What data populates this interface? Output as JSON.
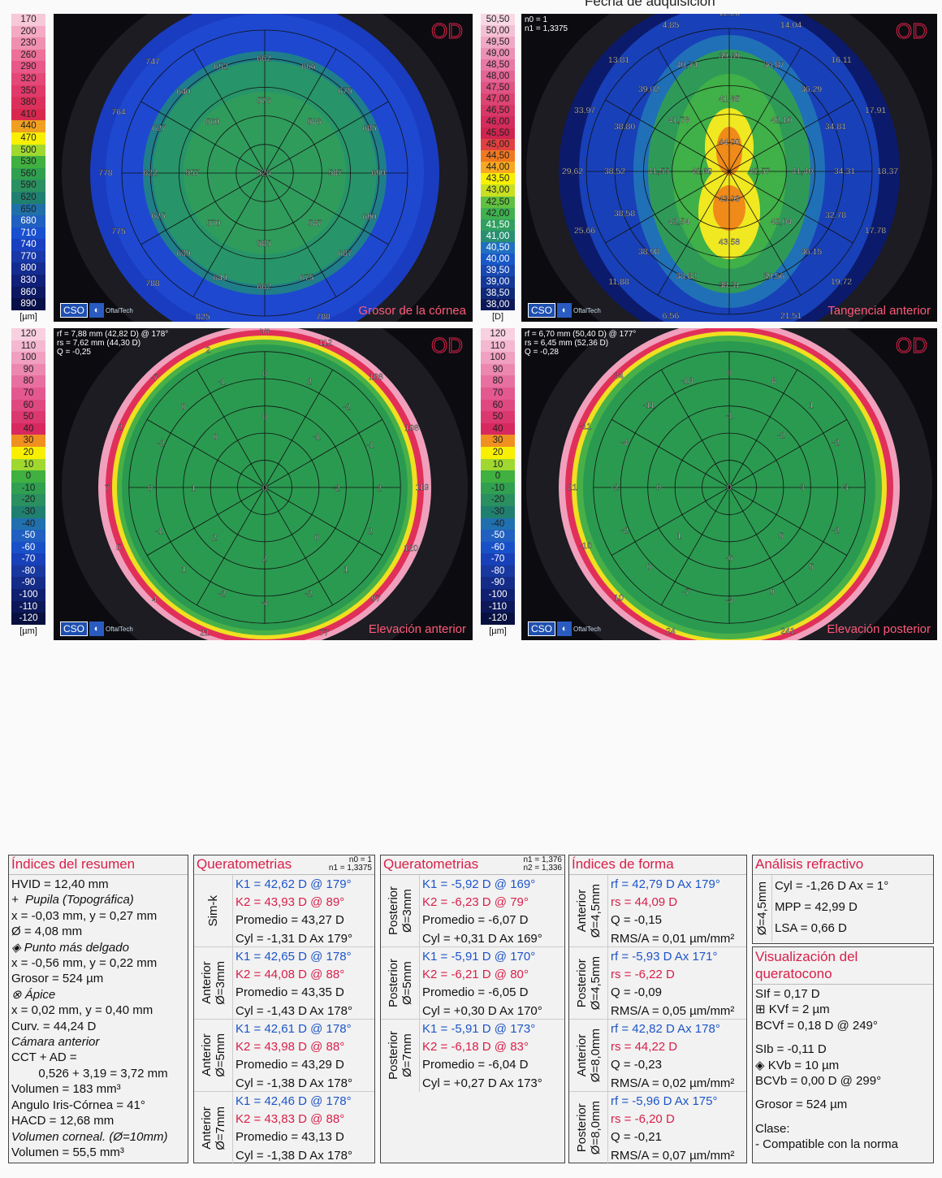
{
  "header": {
    "text": "Fecha de adquisición"
  },
  "maps": [
    {
      "id": "thickness",
      "od": "OD",
      "title": "Grosor de la córnea",
      "unit": "[µm]",
      "info": "",
      "scale": {
        "values": [
          "170",
          "200",
          "230",
          "260",
          "290",
          "320",
          "350",
          "380",
          "410",
          "440",
          "470",
          "500",
          "530",
          "560",
          "590",
          "620",
          "650",
          "680",
          "710",
          "740",
          "770",
          "800",
          "830",
          "860",
          "890"
        ],
        "colors": [
          "#f7c8d8",
          "#f4aac4",
          "#f090b0",
          "#ec7098",
          "#e85888",
          "#e44878",
          "#e03a6a",
          "#dc305c",
          "#d8284e",
          "#f0a020",
          "#f8f000",
          "#a0d830",
          "#40b040",
          "#30a050",
          "#2a9060",
          "#208070",
          "#2070a8",
          "#2060c0",
          "#1850d0",
          "#1840c0",
          "#1838a8",
          "#142c90",
          "#102078",
          "#0c1860",
          "#081048"
        ]
      },
      "labels": [
        "747",
        "652",
        "662",
        "666",
        "640",
        "675",
        "576",
        "764",
        "627",
        "560",
        "586",
        "685",
        "778",
        "622",
        "557",
        "526",
        "587",
        "690",
        "625",
        "570",
        "587",
        "690",
        "775",
        "585",
        "639",
        "687",
        "649",
        "662",
        "675",
        "788",
        "825",
        "788"
      ]
    },
    {
      "id": "tangential",
      "od": "OD",
      "title": "Tangencial anterior",
      "unit": "[D]",
      "info": "n0 = 1\nn1 = 1,3375",
      "scale": {
        "values": [
          "50,50",
          "50,00",
          "49,50",
          "49,00",
          "48,50",
          "48,00",
          "47,50",
          "47,00",
          "46,50",
          "46,00",
          "45,50",
          "45,00",
          "44,50",
          "44,00",
          "43,50",
          "43,00",
          "42,50",
          "42,00",
          "41,50",
          "41,00",
          "40,50",
          "40,00",
          "39,50",
          "39,00",
          "38,50",
          "38,00"
        ],
        "colors": [
          "#f8d8e4",
          "#f4c0d4",
          "#f0a8c4",
          "#ec90b4",
          "#e878a4",
          "#e46494",
          "#e05484",
          "#dc4474",
          "#d83868",
          "#d42c5c",
          "#d02450",
          "#e04040",
          "#f07820",
          "#f8a820",
          "#f8f000",
          "#c8e020",
          "#60c040",
          "#40b050",
          "#30a060",
          "#289070",
          "#2070c0",
          "#1858c8",
          "#1848b0",
          "#143898",
          "#102878",
          "#0c1858"
        ]
      },
      "labels": [
        "12,28",
        "4,85",
        "14,04",
        "13,81",
        "40,74",
        "39,89",
        "36,87",
        "16,11",
        "39,02",
        "41,85",
        "36,29",
        "33,97",
        "38,80",
        "41,78",
        "42,10",
        "34,81",
        "17,91",
        "44,00",
        "29,62",
        "38,52",
        "41,55",
        "42,60",
        "42,57",
        "41,40",
        "34,31",
        "18,37",
        "43,93",
        "38,58",
        "42,54",
        "42,04",
        "32,78",
        "25,66",
        "17,78",
        "43,58",
        "38,98",
        "36,15",
        "11,88",
        "38,82",
        "38,31",
        "39,56",
        "19,72",
        "6,56",
        "21,51"
      ]
    },
    {
      "id": "elev-ant",
      "od": "OD",
      "title": "Elevación anterior",
      "unit": "[µm]",
      "info": "rf = 7,88 mm (42,82 D) @ 178°\nrs = 7,62 mm (44,30 D)\nQ = -0,25",
      "scale": {
        "values": [
          "120",
          "110",
          "100",
          "90",
          "80",
          "70",
          "60",
          "50",
          "40",
          "30",
          "20",
          "10",
          "0",
          "-10",
          "-20",
          "-30",
          "-40",
          "-50",
          "-60",
          "-70",
          "-80",
          "-90",
          "-100",
          "-110",
          "-120"
        ],
        "colors": [
          "#f8d0e0",
          "#f4b8d0",
          "#f0a0c0",
          "#ec88b0",
          "#e870a0",
          "#e45890",
          "#e04880",
          "#dc3870",
          "#d82860",
          "#f09020",
          "#f8f000",
          "#a0d830",
          "#40b040",
          "#30a050",
          "#2a9060",
          "#208070",
          "#2070b0",
          "#2060c0",
          "#1850c8",
          "#1840b8",
          "#1838a0",
          "#142c88",
          "#102070",
          "#0c1858",
          "#081040"
        ]
      },
      "labels": [
        "58",
        "2",
        "112",
        "-7",
        "-1",
        "0",
        "2",
        "108",
        "0",
        "-2",
        "0",
        "2",
        "-2",
        "0",
        "-1",
        "108",
        "-1",
        "7",
        "0",
        "1",
        "0",
        "-2",
        "2",
        "119",
        "-1",
        "2",
        "0",
        "2",
        "5",
        "120",
        "2",
        "1",
        "1",
        "-2",
        "-4",
        "-2",
        "97",
        "4",
        "21",
        "77",
        "63"
      ]
    },
    {
      "id": "elev-post",
      "od": "OD",
      "title": "Elevación posterior",
      "unit": "[µm]",
      "info": "rf = 6,70 mm (50,40 D) @ 177°\nrs = 6,45 mm (52,36 D)\nQ = -0,28",
      "scale": {
        "values": [
          "120",
          "110",
          "100",
          "90",
          "80",
          "70",
          "60",
          "50",
          "40",
          "30",
          "20",
          "10",
          "0",
          "-10",
          "-20",
          "-30",
          "-40",
          "-50",
          "-60",
          "-70",
          "-80",
          "-90",
          "-100",
          "-110",
          "-120"
        ],
        "colors": [
          "#f8d0e0",
          "#f4b8d0",
          "#f0a0c0",
          "#ec88b0",
          "#e870a0",
          "#e45890",
          "#e04880",
          "#dc3870",
          "#d82860",
          "#f09020",
          "#f8f000",
          "#a0d830",
          "#40b040",
          "#30a050",
          "#2a9060",
          "#208070",
          "#2070b0",
          "#2060c0",
          "#1850c8",
          "#1840b8",
          "#1838a0",
          "#142c88",
          "#102070",
          "#0c1858",
          "#081040"
        ]
      },
      "labels": [
        "34",
        "-18",
        "0",
        "8",
        "-11",
        "1",
        "-11",
        "-4",
        "-1",
        "-2",
        "-2",
        "21",
        "-2",
        "0",
        "0",
        "3",
        "-3",
        "-2",
        "1",
        "-2",
        "5",
        "-10",
        "0",
        "-6",
        "5",
        "-7",
        "9",
        "10",
        "-3",
        "24",
        "241"
      ]
    }
  ],
  "logo": {
    "cso": "CSO",
    "sub": "OftalTech"
  },
  "summary": {
    "title": "Índices del resumen",
    "lines": [
      {
        "t": "HVID = 12,40 mm"
      },
      {
        "t": "+  Pupila (Topográfica)",
        "i": true
      },
      {
        "t": "x = -0,03 mm, y = 0,27 mm"
      },
      {
        "t": "Ø = 4,08 mm"
      },
      {
        "t": "◈ Punto más delgado",
        "i": true
      },
      {
        "t": "x = -0,56 mm, y = 0,22 mm"
      },
      {
        "t": "Grosor = 524 µm"
      },
      {
        "t": "⊗ Ápice",
        "i": true
      },
      {
        "t": "x = 0,02 mm, y = 0,40 mm"
      },
      {
        "t": "Curv. = 44,24 D"
      },
      {
        "t": "Cámara anterior",
        "i": true
      },
      {
        "t": "CCT + AD ="
      },
      {
        "t": "        0,526 + 3,19 = 3,72 mm"
      },
      {
        "t": "Volumen = 183 mm³"
      },
      {
        "t": "Angulo Iris-Córnea = 41°"
      },
      {
        "t": "HACD = 12,68 mm"
      },
      {
        "t": "Volumen corneal. (Ø=10mm)",
        "i": true
      },
      {
        "t": "Volumen = 55,5 mm³"
      }
    ]
  },
  "kerato_ant": {
    "title": "Queratometrias",
    "n": "n0 = 1\nn1 = 1,3375",
    "groups": [
      {
        "label": "Sim-k",
        "lines": [
          {
            "t": "K1 = 42,62 D  @ 179°",
            "c": "blue"
          },
          {
            "t": "K2 = 43,93 D  @ 89°",
            "c": "red"
          },
          {
            "t": "Promedio = 43,27 D",
            "c": "black"
          },
          {
            "t": "Cyl = -1,31 D Ax 179°",
            "c": "black"
          }
        ]
      },
      {
        "label": "Anterior\nØ=3mm",
        "lines": [
          {
            "t": "K1 = 42,65 D  @ 178°",
            "c": "blue"
          },
          {
            "t": "K2 = 44,08 D  @ 88°",
            "c": "red"
          },
          {
            "t": "Promedio = 43,35 D",
            "c": "black"
          },
          {
            "t": "Cyl = -1,43 D Ax 178°",
            "c": "black"
          }
        ]
      },
      {
        "label": "Anterior\nØ=5mm",
        "lines": [
          {
            "t": "K1 = 42,61 D  @ 178°",
            "c": "blue"
          },
          {
            "t": "K2 = 43,98 D  @ 88°",
            "c": "red"
          },
          {
            "t": "Promedio = 43,29 D",
            "c": "black"
          },
          {
            "t": "Cyl = -1,38 D Ax 178°",
            "c": "black"
          }
        ]
      },
      {
        "label": "Anterior\nØ=7mm",
        "lines": [
          {
            "t": "K1 = 42,46 D  @ 178°",
            "c": "blue"
          },
          {
            "t": "K2 = 43,83 D  @ 88°",
            "c": "red"
          },
          {
            "t": "Promedio = 43,13 D",
            "c": "black"
          },
          {
            "t": "Cyl = -1,38 D Ax 178°",
            "c": "black"
          }
        ]
      }
    ]
  },
  "kerato_post": {
    "title": "Queratometrias",
    "n": "n1 = 1,376\nn2 = 1,336",
    "groups": [
      {
        "label": "Posterior\nØ=3mm",
        "lines": [
          {
            "t": "K1 = -5,92 D  @ 169°",
            "c": "blue"
          },
          {
            "t": "K2 = -6,23 D  @ 79°",
            "c": "red"
          },
          {
            "t": "Promedio = -6,07 D",
            "c": "black"
          },
          {
            "t": "Cyl = +0,31 D Ax 169°",
            "c": "black"
          }
        ]
      },
      {
        "label": "Posterior\nØ=5mm",
        "lines": [
          {
            "t": "K1 = -5,91 D  @ 170°",
            "c": "blue"
          },
          {
            "t": "K2 = -6,21 D  @ 80°",
            "c": "red"
          },
          {
            "t": "Promedio = -6,05 D",
            "c": "black"
          },
          {
            "t": "Cyl = +0,30 D Ax 170°",
            "c": "black"
          }
        ]
      },
      {
        "label": "Posterior\nØ=7mm",
        "lines": [
          {
            "t": "K1 = -5,91 D  @ 173°",
            "c": "blue"
          },
          {
            "t": "K2 = -6,18 D  @ 83°",
            "c": "red"
          },
          {
            "t": "Promedio = -6,04 D",
            "c": "black"
          },
          {
            "t": "Cyl = +0,27 D Ax 173°",
            "c": "black"
          }
        ]
      }
    ]
  },
  "shape": {
    "title": "Índices de forma",
    "groups": [
      {
        "label": "Anterior\nØ=4,5mm",
        "lines": [
          {
            "t": "rf = 42,79 D Ax 179°",
            "c": "blue"
          },
          {
            "t": "rs = 44,09 D",
            "c": "red"
          },
          {
            "t": "Q = -0,15",
            "c": "black"
          },
          {
            "t": "RMS/A = 0,01 µm/mm²",
            "c": "black"
          }
        ]
      },
      {
        "label": "Posterior\nØ=4,5mm",
        "lines": [
          {
            "t": "rf = -5,93 D Ax 171°",
            "c": "blue"
          },
          {
            "t": "rs = -6,22 D",
            "c": "red"
          },
          {
            "t": "Q = -0,09",
            "c": "black"
          },
          {
            "t": "RMS/A = 0,05 µm/mm²",
            "c": "black"
          }
        ]
      },
      {
        "label": "Anterior\nØ=8,0mm",
        "lines": [
          {
            "t": "rf = 42,82 D Ax 178°",
            "c": "blue"
          },
          {
            "t": "rs = 44,22 D",
            "c": "red"
          },
          {
            "t": "Q = -0,23",
            "c": "black"
          },
          {
            "t": "RMS/A = 0,02 µm/mm²",
            "c": "black"
          }
        ]
      },
      {
        "label": "Posterior\nØ=8,0mm",
        "lines": [
          {
            "t": "rf = -5,96 D Ax 175°",
            "c": "blue"
          },
          {
            "t": "rs = -6,20 D",
            "c": "red"
          },
          {
            "t": "Q = -0,21",
            "c": "black"
          },
          {
            "t": "RMS/A = 0,07 µm/mm²",
            "c": "black"
          }
        ]
      }
    ]
  },
  "refractive": {
    "title": "Análisis refractivo",
    "label": "Ø=4,5mm",
    "lines": [
      {
        "t": "Cyl = -1,26 D Ax = 1°"
      },
      {
        "t": "MPP = 42,99 D"
      },
      {
        "t": "LSA = 0,66 D"
      }
    ]
  },
  "keratoconus": {
    "title": "Visualización del queratocono",
    "lines": [
      {
        "t": "SIf = 0,17 D"
      },
      {
        "t": "⊞ KVf = 2 µm"
      },
      {
        "t": "BCVf = 0,18 D @ 249°"
      },
      {
        "t": ""
      },
      {
        "t": "SIb = -0,11 D"
      },
      {
        "t": "◈ KVb = 10 µm"
      },
      {
        "t": "BCVb = 0,00 D @ 299°"
      },
      {
        "t": ""
      },
      {
        "t": "Grosor = 524 µm"
      },
      {
        "t": ""
      },
      {
        "t": "Clase:"
      },
      {
        "t": "- Compatible con la norma"
      }
    ]
  }
}
